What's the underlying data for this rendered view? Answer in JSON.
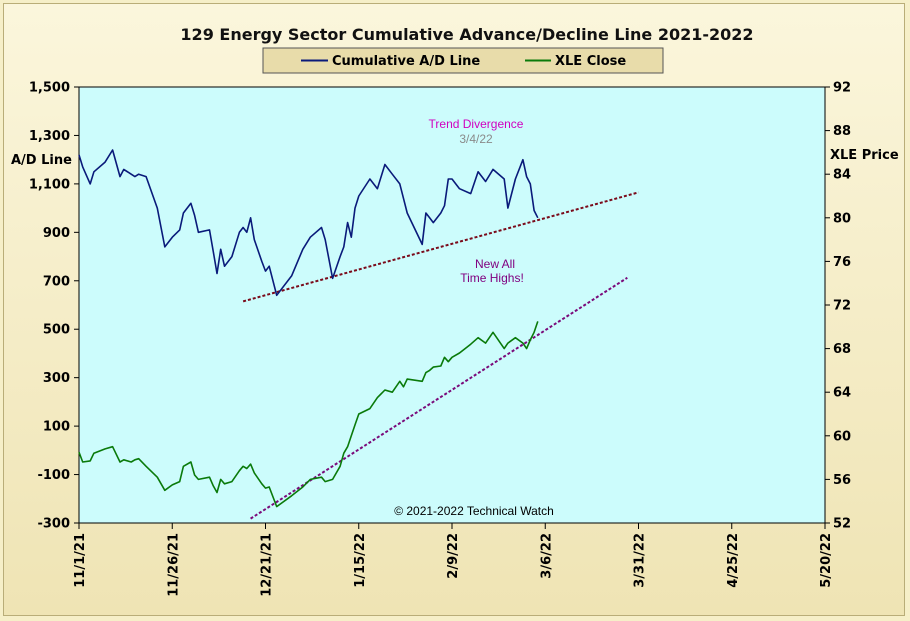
{
  "chart_data": {
    "type": "line",
    "title": "129 Energy Sector Cumulative Advance/Decline Line 2021-2022",
    "copyright": "© 2021-2022  Technical Watch",
    "x_axis": {
      "type": "date",
      "ticks": [
        "11/1/21",
        "11/26/21",
        "12/21/21",
        "1/15/22",
        "2/9/22",
        "3/6/22",
        "3/31/22",
        "4/25/22",
        "5/20/22"
      ],
      "range": [
        "2021-11-01",
        "2022-05-20"
      ]
    },
    "y_left": {
      "label": "A/D Line",
      "range": [
        -300,
        1500
      ],
      "ticks": [
        "-300",
        "-100",
        "100",
        "300",
        "500",
        "700",
        "900",
        "1,100",
        "1,300",
        "1,500"
      ]
    },
    "y_right": {
      "label": "XLE Price",
      "range": [
        52,
        92
      ],
      "ticks": [
        "52",
        "56",
        "60",
        "64",
        "68",
        "72",
        "76",
        "80",
        "84",
        "88",
        "92"
      ]
    },
    "legend": {
      "placement": "top-center",
      "entries": [
        {
          "label": "Cumulative A/D Line",
          "color": "#0a1a7a"
        },
        {
          "label": "XLE Close",
          "color": "#0a7a0a"
        }
      ]
    },
    "grid": false,
    "plot_background": "#ccfcfc",
    "series": [
      {
        "name": "Cumulative A/D Line",
        "axis": "left",
        "color": "#0a1a7a",
        "x": [
          "2021-11-01",
          "2021-11-02",
          "2021-11-04",
          "2021-11-05",
          "2021-11-08",
          "2021-11-10",
          "2021-11-12",
          "2021-11-13",
          "2021-11-15",
          "2021-11-16",
          "2021-11-17",
          "2021-11-19",
          "2021-11-22",
          "2021-11-24",
          "2021-11-26",
          "2021-11-28",
          "2021-11-29",
          "2021-12-01",
          "2021-12-02",
          "2021-12-03",
          "2021-12-06",
          "2021-12-07",
          "2021-12-08",
          "2021-12-09",
          "2021-12-10",
          "2021-12-12",
          "2021-12-14",
          "2021-12-15",
          "2021-12-16",
          "2021-12-17",
          "2021-12-18",
          "2021-12-20",
          "2021-12-21",
          "2021-12-22",
          "2021-12-24",
          "2021-12-28",
          "2021-12-31",
          "2022-01-02",
          "2022-01-05",
          "2022-01-06",
          "2022-01-08",
          "2022-01-10",
          "2022-01-11",
          "2022-01-12",
          "2022-01-13",
          "2022-01-14",
          "2022-01-15",
          "2022-01-18",
          "2022-01-20",
          "2022-01-22",
          "2022-01-24",
          "2022-01-26",
          "2022-01-27",
          "2022-01-28",
          "2022-02-01",
          "2022-02-02",
          "2022-02-03",
          "2022-02-04",
          "2022-02-06",
          "2022-02-07",
          "2022-02-08",
          "2022-02-09",
          "2022-02-11",
          "2022-02-14",
          "2022-02-16",
          "2022-02-18",
          "2022-02-20",
          "2022-02-23",
          "2022-02-24",
          "2022-02-26",
          "2022-02-28",
          "2022-03-01",
          "2022-03-02",
          "2022-03-03",
          "2022-03-04"
        ],
        "values": [
          1220,
          1170,
          1100,
          1150,
          1190,
          1240,
          1130,
          1160,
          1140,
          1130,
          1140,
          1130,
          1000,
          840,
          880,
          910,
          980,
          1020,
          970,
          900,
          910,
          820,
          730,
          830,
          760,
          800,
          900,
          920,
          900,
          960,
          870,
          780,
          740,
          760,
          640,
          720,
          830,
          880,
          920,
          870,
          710,
          800,
          840,
          940,
          880,
          1000,
          1050,
          1120,
          1080,
          1180,
          1140,
          1100,
          1040,
          980,
          850,
          980,
          960,
          940,
          980,
          1010,
          1120,
          1120,
          1080,
          1060,
          1150,
          1110,
          1160,
          1120,
          1000,
          1120,
          1200,
          1130,
          1100,
          990,
          960
        ]
      },
      {
        "name": "XLE Close",
        "axis": "right",
        "color": "#0a7a0a",
        "x": [
          "2021-11-01",
          "2021-11-02",
          "2021-11-04",
          "2021-11-05",
          "2021-11-08",
          "2021-11-10",
          "2021-11-12",
          "2021-11-13",
          "2021-11-15",
          "2021-11-16",
          "2021-11-17",
          "2021-11-19",
          "2021-11-22",
          "2021-11-24",
          "2021-11-26",
          "2021-11-28",
          "2021-11-29",
          "2021-12-01",
          "2021-12-02",
          "2021-12-03",
          "2021-12-06",
          "2021-12-07",
          "2021-12-08",
          "2021-12-09",
          "2021-12-10",
          "2021-12-12",
          "2021-12-14",
          "2021-12-15",
          "2021-12-16",
          "2021-12-17",
          "2021-12-18",
          "2021-12-20",
          "2021-12-21",
          "2021-12-22",
          "2021-12-24",
          "2021-12-28",
          "2021-12-31",
          "2022-01-02",
          "2022-01-05",
          "2022-01-06",
          "2022-01-08",
          "2022-01-10",
          "2022-01-11",
          "2022-01-12",
          "2022-01-13",
          "2022-01-14",
          "2022-01-15",
          "2022-01-18",
          "2022-01-20",
          "2022-01-22",
          "2022-01-24",
          "2022-01-26",
          "2022-01-27",
          "2022-01-28",
          "2022-02-01",
          "2022-02-02",
          "2022-02-03",
          "2022-02-04",
          "2022-02-06",
          "2022-02-07",
          "2022-02-08",
          "2022-02-09",
          "2022-02-11",
          "2022-02-14",
          "2022-02-16",
          "2022-02-18",
          "2022-02-20",
          "2022-02-23",
          "2022-02-24",
          "2022-02-26",
          "2022-02-28",
          "2022-03-01",
          "2022-03-02",
          "2022-03-03",
          "2022-03-04"
        ],
        "values": [
          58.5,
          57.6,
          57.7,
          58.4,
          58.8,
          59.0,
          57.6,
          57.8,
          57.6,
          57.8,
          57.9,
          57.2,
          56.2,
          55.0,
          55.5,
          55.8,
          57.2,
          57.6,
          56.4,
          56.0,
          56.2,
          55.4,
          54.8,
          56.0,
          55.6,
          55.8,
          56.8,
          57.2,
          57.0,
          57.4,
          56.6,
          55.6,
          55.2,
          55.3,
          53.5,
          54.5,
          55.3,
          56.0,
          56.2,
          55.8,
          56.0,
          57.2,
          58.4,
          59.0,
          60.0,
          61.0,
          62.0,
          62.5,
          63.5,
          64.2,
          64.0,
          65.0,
          64.5,
          65.2,
          65.0,
          65.8,
          66.0,
          66.3,
          66.4,
          67.2,
          66.8,
          67.2,
          67.6,
          68.4,
          69.0,
          68.5,
          69.5,
          68.0,
          68.5,
          69.0,
          68.5,
          68.0,
          68.8,
          69.5,
          70.5
        ]
      }
    ],
    "trendlines": [
      {
        "axis": "left",
        "from": {
          "x": "2021-12-15",
          "y": 615
        },
        "to": {
          "x": "2022-03-31",
          "y": 1065
        },
        "color": "#7a0a1a"
      },
      {
        "axis": "right",
        "from": {
          "x": "2021-12-17",
          "y": 52.4
        },
        "to": {
          "x": "2022-03-28",
          "y": 74.5
        },
        "color": "#7a0a7a"
      }
    ],
    "annotations": [
      {
        "text": "Trend  Divergence",
        "color": "#d000c0"
      },
      {
        "text": "3/4/22",
        "color": "#8a8a8a"
      },
      {
        "text": "New All",
        "color": "#800080"
      },
      {
        "text": "Time Highs!",
        "color": "#800080"
      }
    ]
  }
}
